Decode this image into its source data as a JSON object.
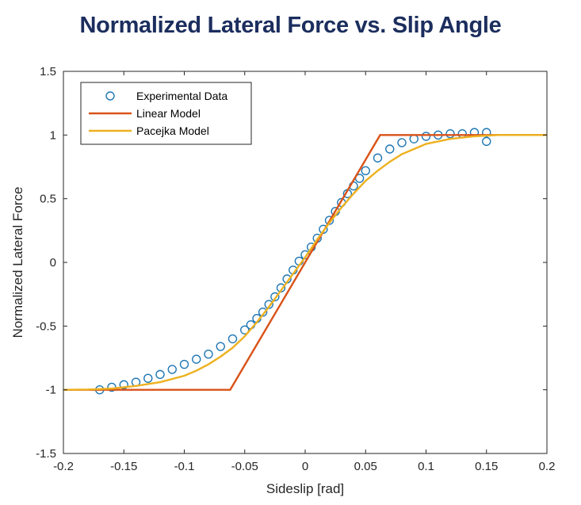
{
  "chart_data": {
    "type": "scatter",
    "title": "Normalized Lateral Force vs. Slip Angle",
    "xlabel": "Sideslip [rad]",
    "ylabel": "Normalized Lateral Force",
    "xlim": [
      -0.2,
      0.2
    ],
    "ylim": [
      -1.5,
      1.5
    ],
    "xticks": [
      "-0.2",
      "-0.15",
      "-0.1",
      "-0.05",
      "0",
      "0.05",
      "0.1",
      "0.15",
      "0.2"
    ],
    "yticks": [
      "-1.5",
      "-1",
      "-0.5",
      "0",
      "0.5",
      "1",
      "1.5"
    ],
    "grid": false,
    "legend_position": "top-left",
    "series": [
      {
        "name": "Experimental Data",
        "kind": "scatter",
        "color": "#1f77b4",
        "x": [
          -0.17,
          -0.16,
          -0.15,
          -0.14,
          -0.13,
          -0.12,
          -0.11,
          -0.1,
          -0.09,
          -0.08,
          -0.07,
          -0.06,
          -0.05,
          -0.045,
          -0.04,
          -0.035,
          -0.03,
          -0.025,
          -0.02,
          -0.015,
          -0.01,
          -0.005,
          0.0,
          0.005,
          0.01,
          0.015,
          0.02,
          0.025,
          0.03,
          0.035,
          0.04,
          0.045,
          0.05,
          0.06,
          0.07,
          0.08,
          0.09,
          0.1,
          0.11,
          0.12,
          0.13,
          0.14,
          0.15,
          0.15
        ],
        "y": [
          -1.0,
          -0.98,
          -0.96,
          -0.94,
          -0.91,
          -0.88,
          -0.84,
          -0.8,
          -0.76,
          -0.72,
          -0.66,
          -0.6,
          -0.53,
          -0.49,
          -0.44,
          -0.39,
          -0.33,
          -0.27,
          -0.2,
          -0.13,
          -0.06,
          0.01,
          0.06,
          0.12,
          0.19,
          0.26,
          0.33,
          0.4,
          0.47,
          0.54,
          0.6,
          0.66,
          0.72,
          0.82,
          0.89,
          0.94,
          0.97,
          0.99,
          1.0,
          1.01,
          1.01,
          1.02,
          1.02,
          0.95
        ]
      },
      {
        "name": "Linear Model",
        "kind": "line",
        "color": "#d95319",
        "x": [
          -0.2,
          -0.062,
          0.062,
          0.2
        ],
        "y": [
          -1.0,
          -1.0,
          1.0,
          1.0
        ]
      },
      {
        "name": "Pacejka Model",
        "kind": "line",
        "color": "#edb120",
        "x": [
          -0.2,
          -0.18,
          -0.16,
          -0.14,
          -0.12,
          -0.1,
          -0.09,
          -0.08,
          -0.07,
          -0.06,
          -0.05,
          -0.04,
          -0.03,
          -0.02,
          -0.01,
          0.0,
          0.01,
          0.02,
          0.03,
          0.04,
          0.05,
          0.06,
          0.07,
          0.08,
          0.09,
          0.1,
          0.12,
          0.14,
          0.16,
          0.18,
          0.2
        ],
        "y": [
          -1.0,
          -0.998,
          -0.99,
          -0.97,
          -0.94,
          -0.89,
          -0.85,
          -0.8,
          -0.74,
          -0.67,
          -0.58,
          -0.47,
          -0.35,
          -0.22,
          -0.09,
          0.04,
          0.18,
          0.31,
          0.43,
          0.54,
          0.64,
          0.72,
          0.79,
          0.85,
          0.89,
          0.93,
          0.97,
          0.99,
          1.0,
          1.0,
          1.0
        ]
      }
    ]
  }
}
